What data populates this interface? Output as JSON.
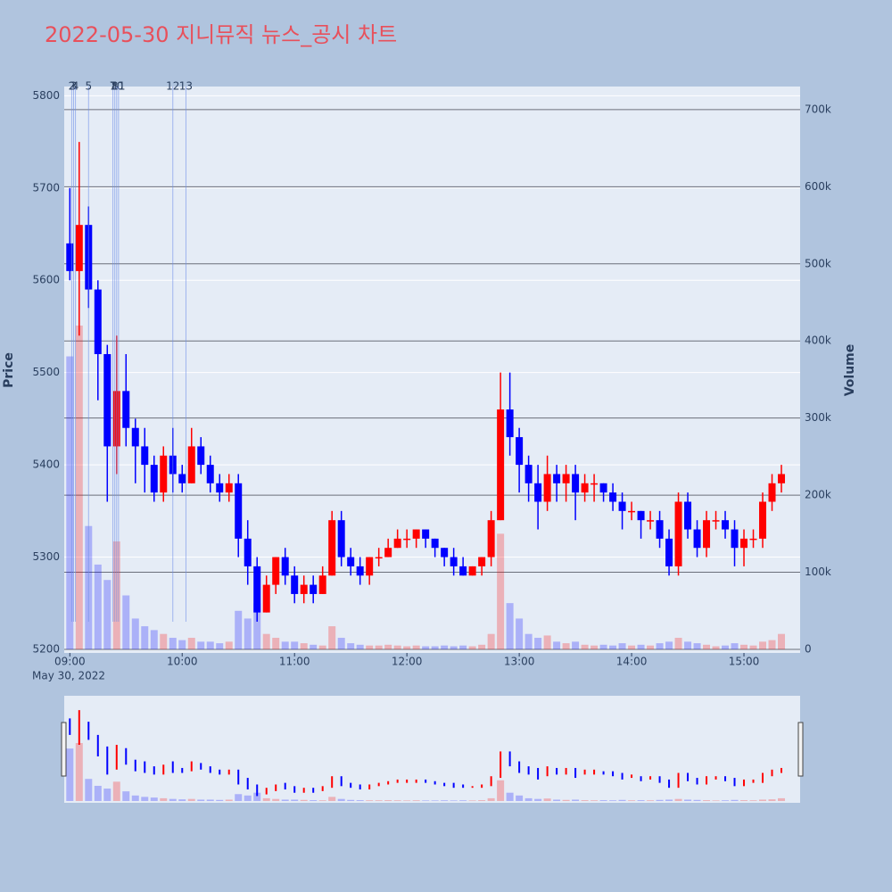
{
  "chart_data": {
    "type": "candlestick",
    "title": "2022-05-30 지니뮤직 뉴스_공시 차트",
    "y_label": "Price",
    "y2_label": "Volume",
    "x_date_label": "May 30, 2022",
    "up_color": "#ff0000",
    "down_color": "#0000ff",
    "xlim": [
      "2022-05-30 08:57",
      "2022-05-30 15:30"
    ],
    "xticks": [
      {
        "value": "2022-05-30 09:00",
        "label": "09:00"
      },
      {
        "value": "2022-05-30 10:00",
        "label": "10:00"
      },
      {
        "value": "2022-05-30 11:00",
        "label": "11:00"
      },
      {
        "value": "2022-05-30 12:00",
        "label": "12:00"
      },
      {
        "value": "2022-05-30 13:00",
        "label": "13:00"
      },
      {
        "value": "2022-05-30 14:00",
        "label": "14:00"
      },
      {
        "value": "2022-05-30 15:00",
        "label": "15:00"
      }
    ],
    "ylim": [
      5200,
      5810
    ],
    "yticks": [
      5200,
      5300,
      5400,
      5500,
      5600,
      5700,
      5800
    ],
    "y2lim": [
      0,
      730000
    ],
    "y2ticks": [
      0,
      {
        "value": 100000,
        "label": "100k"
      },
      {
        "value": 200000,
        "label": "200k"
      },
      {
        "value": 300000,
        "label": "300k"
      },
      {
        "value": 400000,
        "label": "400k"
      },
      {
        "value": 500000,
        "label": "500k"
      },
      {
        "value": 600000,
        "label": "600k"
      },
      {
        "value": 700000,
        "label": "700k"
      }
    ],
    "events": [
      {
        "time": "2022-05-30 09:01",
        "label": "2"
      },
      {
        "time": "2022-05-30 09:02",
        "label": "3"
      },
      {
        "time": "2022-05-30 09:03",
        "label": "4"
      },
      {
        "time": "2022-05-30 09:10",
        "label": "5"
      },
      {
        "time": "2022-05-30 09:23",
        "label": "7"
      },
      {
        "time": "2022-05-30 09:24",
        "label": "8"
      },
      {
        "time": "2022-05-30 09:25",
        "label": "10"
      },
      {
        "time": "2022-05-30 09:26",
        "label": "11"
      },
      {
        "time": "2022-05-30 09:55",
        "label": "12"
      },
      {
        "time": "2022-05-30 10:02",
        "label": "13"
      }
    ],
    "x": [
      "2022-05-30 09:00",
      "2022-05-30 09:05",
      "2022-05-30 09:10",
      "2022-05-30 09:15",
      "2022-05-30 09:20",
      "2022-05-30 09:25",
      "2022-05-30 09:30",
      "2022-05-30 09:35",
      "2022-05-30 09:40",
      "2022-05-30 09:45",
      "2022-05-30 09:50",
      "2022-05-30 09:55",
      "2022-05-30 10:00",
      "2022-05-30 10:05",
      "2022-05-30 10:10",
      "2022-05-30 10:15",
      "2022-05-30 10:20",
      "2022-05-30 10:25",
      "2022-05-30 10:30",
      "2022-05-30 10:35",
      "2022-05-30 10:40",
      "2022-05-30 10:45",
      "2022-05-30 10:50",
      "2022-05-30 10:55",
      "2022-05-30 11:00",
      "2022-05-30 11:05",
      "2022-05-30 11:10",
      "2022-05-30 11:15",
      "2022-05-30 11:20",
      "2022-05-30 11:25",
      "2022-05-30 11:30",
      "2022-05-30 11:35",
      "2022-05-30 11:40",
      "2022-05-30 11:45",
      "2022-05-30 11:50",
      "2022-05-30 11:55",
      "2022-05-30 12:00",
      "2022-05-30 12:05",
      "2022-05-30 12:10",
      "2022-05-30 12:15",
      "2022-05-30 12:20",
      "2022-05-30 12:25",
      "2022-05-30 12:30",
      "2022-05-30 12:35",
      "2022-05-30 12:40",
      "2022-05-30 12:45",
      "2022-05-30 12:50",
      "2022-05-30 12:55",
      "2022-05-30 13:00",
      "2022-05-30 13:05",
      "2022-05-30 13:10",
      "2022-05-30 13:15",
      "2022-05-30 13:20",
      "2022-05-30 13:25",
      "2022-05-30 13:30",
      "2022-05-30 13:35",
      "2022-05-30 13:40",
      "2022-05-30 13:45",
      "2022-05-30 13:50",
      "2022-05-30 13:55",
      "2022-05-30 14:00",
      "2022-05-30 14:05",
      "2022-05-30 14:10",
      "2022-05-30 14:15",
      "2022-05-30 14:20",
      "2022-05-30 14:25",
      "2022-05-30 14:30",
      "2022-05-30 14:35",
      "2022-05-30 14:40",
      "2022-05-30 14:45",
      "2022-05-30 14:50",
      "2022-05-30 14:55",
      "2022-05-30 15:00",
      "2022-05-30 15:05",
      "2022-05-30 15:10",
      "2022-05-30 15:15",
      "2022-05-30 15:20"
    ],
    "open": [
      5640,
      5610,
      5660,
      5590,
      5520,
      5420,
      5480,
      5440,
      5420,
      5400,
      5370,
      5410,
      5390,
      5380,
      5420,
      5400,
      5380,
      5370,
      5380,
      5320,
      5290,
      5240,
      5270,
      5300,
      5280,
      5260,
      5270,
      5260,
      5280,
      5340,
      5300,
      5290,
      5280,
      5300,
      5300,
      5310,
      5320,
      5320,
      5330,
      5320,
      5310,
      5300,
      5290,
      5280,
      5290,
      5300,
      5340,
      5460,
      5430,
      5400,
      5380,
      5360,
      5390,
      5380,
      5390,
      5370,
      5380,
      5380,
      5370,
      5360,
      5350,
      5350,
      5340,
      5340,
      5320,
      5290,
      5360,
      5330,
      5310,
      5340,
      5340,
      5330,
      5310,
      5320,
      5320,
      5360,
      5380
    ],
    "high": [
      5700,
      5750,
      5680,
      5600,
      5530,
      5540,
      5520,
      5450,
      5440,
      5410,
      5420,
      5440,
      5400,
      5440,
      5430,
      5410,
      5390,
      5390,
      5390,
      5340,
      5300,
      5280,
      5300,
      5310,
      5290,
      5280,
      5280,
      5290,
      5350,
      5350,
      5310,
      5300,
      5300,
      5310,
      5320,
      5330,
      5330,
      5330,
      5330,
      5320,
      5310,
      5310,
      5300,
      5290,
      5300,
      5350,
      5500,
      5500,
      5440,
      5410,
      5400,
      5410,
      5400,
      5400,
      5400,
      5390,
      5390,
      5380,
      5380,
      5370,
      5360,
      5350,
      5350,
      5350,
      5330,
      5370,
      5370,
      5340,
      5350,
      5350,
      5350,
      5340,
      5330,
      5330,
      5370,
      5390,
      5400
    ],
    "low": [
      5600,
      5540,
      5570,
      5470,
      5360,
      5390,
      5420,
      5380,
      5370,
      5360,
      5360,
      5370,
      5370,
      5380,
      5390,
      5370,
      5360,
      5360,
      5300,
      5270,
      5230,
      5240,
      5260,
      5270,
      5250,
      5250,
      5250,
      5260,
      5280,
      5290,
      5280,
      5270,
      5270,
      5290,
      5300,
      5310,
      5310,
      5310,
      5310,
      5300,
      5290,
      5280,
      5280,
      5280,
      5280,
      5290,
      5340,
      5410,
      5370,
      5360,
      5330,
      5350,
      5360,
      5360,
      5340,
      5360,
      5360,
      5360,
      5350,
      5330,
      5340,
      5320,
      5330,
      5310,
      5280,
      5280,
      5320,
      5300,
      5300,
      5330,
      5320,
      5290,
      5290,
      5310,
      5310,
      5350,
      5370
    ],
    "close": [
      5610,
      5660,
      5590,
      5520,
      5420,
      5480,
      5440,
      5420,
      5400,
      5370,
      5410,
      5390,
      5380,
      5420,
      5400,
      5380,
      5370,
      5380,
      5320,
      5290,
      5240,
      5270,
      5300,
      5280,
      5260,
      5270,
      5260,
      5280,
      5340,
      5300,
      5290,
      5280,
      5300,
      5300,
      5310,
      5320,
      5320,
      5330,
      5320,
      5310,
      5300,
      5290,
      5280,
      5290,
      5300,
      5340,
      5460,
      5430,
      5400,
      5380,
      5360,
      5390,
      5380,
      5390,
      5370,
      5380,
      5380,
      5370,
      5360,
      5350,
      5350,
      5340,
      5340,
      5320,
      5290,
      5360,
      5330,
      5310,
      5340,
      5340,
      5330,
      5310,
      5320,
      5320,
      5360,
      5380,
      5390
    ],
    "volume": [
      380000,
      420000,
      160000,
      110000,
      90000,
      140000,
      70000,
      40000,
      30000,
      25000,
      20000,
      15000,
      12000,
      15000,
      10000,
      10000,
      8000,
      10000,
      50000,
      40000,
      60000,
      20000,
      15000,
      10000,
      10000,
      8000,
      6000,
      5000,
      30000,
      15000,
      8000,
      6000,
      5000,
      5000,
      6000,
      5000,
      4000,
      5000,
      4000,
      4000,
      5000,
      4000,
      5000,
      4000,
      6000,
      20000,
      150000,
      60000,
      40000,
      20000,
      15000,
      18000,
      10000,
      8000,
      10000,
      6000,
      5000,
      6000,
      5000,
      8000,
      5000,
      6000,
      5000,
      8000,
      10000,
      15000,
      10000,
      8000,
      6000,
      4000,
      5000,
      8000,
      6000,
      5000,
      10000,
      12000,
      20000
    ]
  }
}
